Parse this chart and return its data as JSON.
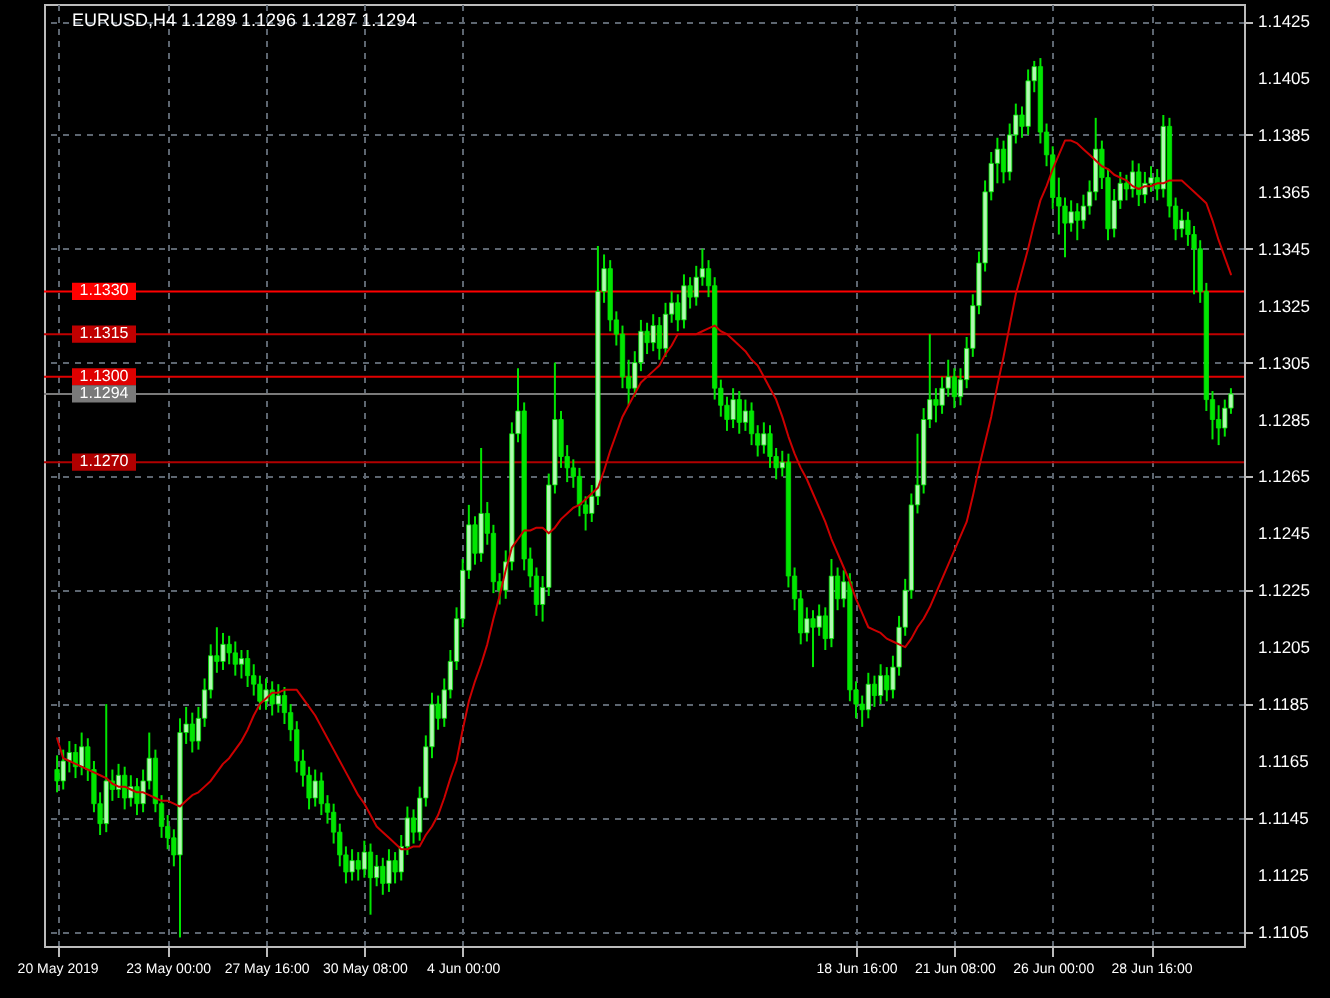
{
  "chart_data": {
    "type": "candlestick",
    "title": "EURUSD,H4  1.1289 1.1296 1.1287 1.1294",
    "color": "#00e600",
    "categories": [
      "20 May 2019",
      null,
      null,
      null,
      null,
      null,
      null,
      null,
      null,
      null,
      null,
      null,
      null,
      null,
      null,
      null,
      null,
      null,
      "23 May 00:00",
      null,
      null,
      null,
      null,
      null,
      null,
      null,
      null,
      null,
      null,
      null,
      null,
      null,
      null,
      null,
      "27 May 16:00",
      null,
      null,
      null,
      null,
      null,
      null,
      null,
      null,
      null,
      null,
      null,
      null,
      null,
      null,
      null,
      "30 May 08:00",
      null,
      null,
      null,
      null,
      null,
      null,
      null,
      null,
      null,
      null,
      null,
      null,
      null,
      null,
      null,
      "4 Jun 00:00",
      null,
      null,
      null,
      null,
      null,
      null,
      null,
      null,
      null,
      null,
      null,
      null,
      null,
      null,
      null,
      null,
      null,
      null,
      null,
      null,
      null,
      null,
      null,
      null,
      null,
      null,
      null,
      null,
      null,
      null,
      null,
      null,
      null,
      null,
      null,
      null,
      null,
      null,
      null,
      null,
      null,
      null,
      null,
      null,
      null,
      null,
      null,
      null,
      null,
      null,
      null,
      null,
      null,
      null,
      null,
      null,
      null,
      null,
      null,
      null,
      null,
      null,
      null,
      "18 Jun 16:00",
      null,
      null,
      null,
      null,
      null,
      null,
      null,
      null,
      null,
      null,
      null,
      null,
      null,
      null,
      null,
      "21 Jun 08:00",
      null,
      null,
      null,
      null,
      null,
      null,
      null,
      null,
      null,
      null,
      null,
      null,
      null,
      null,
      null,
      "26 Jun 00:00",
      null,
      null,
      null,
      null,
      null,
      null,
      null,
      null,
      null,
      null,
      null,
      null,
      null,
      null,
      null,
      "28 Jun 16:00",
      null,
      null,
      null,
      null,
      null,
      null,
      null,
      null,
      null,
      null,
      null,
      null,
      null
    ],
    "ohlc": [
      [
        1.1162,
        1.1167,
        1.1154,
        1.1158
      ],
      [
        1.1158,
        1.1169,
        1.1155,
        1.1165
      ],
      [
        1.1165,
        1.1172,
        1.1161,
        1.1168
      ],
      [
        1.1168,
        1.1171,
        1.1159,
        1.1163
      ],
      [
        1.1163,
        1.1175,
        1.116,
        1.117
      ],
      [
        1.117,
        1.1173,
        1.1158,
        1.1162
      ],
      [
        1.1162,
        1.1165,
        1.1147,
        1.115
      ],
      [
        1.115,
        1.1154,
        1.1139,
        1.1143
      ],
      [
        1.1143,
        1.1185,
        1.114,
        1.1158
      ],
      [
        1.1158,
        1.1162,
        1.1151,
        1.1155
      ],
      [
        1.1155,
        1.1164,
        1.1152,
        1.116
      ],
      [
        1.116,
        1.1163,
        1.1148,
        1.1152
      ],
      [
        1.1152,
        1.116,
        1.1149,
        1.1156
      ],
      [
        1.1156,
        1.1159,
        1.1146,
        1.115
      ],
      [
        1.115,
        1.1162,
        1.1147,
        1.1158
      ],
      [
        1.1158,
        1.1175,
        1.1155,
        1.1166
      ],
      [
        1.1166,
        1.1169,
        1.1147,
        1.115
      ],
      [
        1.115,
        1.1153,
        1.1138,
        1.1142
      ],
      [
        1.1142,
        1.1146,
        1.1134,
        1.1138
      ],
      [
        1.1138,
        1.1141,
        1.1128,
        1.1132
      ],
      [
        1.1132,
        1.118,
        1.1103,
        1.1175
      ],
      [
        1.1175,
        1.1184,
        1.1171,
        1.1178
      ],
      [
        1.1178,
        1.1182,
        1.1168,
        1.1172
      ],
      [
        1.1172,
        1.1184,
        1.1169,
        1.118
      ],
      [
        1.118,
        1.1194,
        1.1177,
        1.119
      ],
      [
        1.119,
        1.1206,
        1.1187,
        1.1202
      ],
      [
        1.1202,
        1.1212,
        1.1196,
        1.12
      ],
      [
        1.12,
        1.121,
        1.1197,
        1.1206
      ],
      [
        1.1206,
        1.1209,
        1.1199,
        1.1203
      ],
      [
        1.1203,
        1.1207,
        1.1195,
        1.1199
      ],
      [
        1.1199,
        1.1204,
        1.1194,
        1.1201
      ],
      [
        1.1201,
        1.1204,
        1.1191,
        1.1195
      ],
      [
        1.1195,
        1.1199,
        1.1188,
        1.1192
      ],
      [
        1.1192,
        1.1195,
        1.1183,
        1.1186
      ],
      [
        1.1186,
        1.1194,
        1.1183,
        1.119
      ],
      [
        1.119,
        1.1193,
        1.1181,
        1.1185
      ],
      [
        1.1185,
        1.1192,
        1.1182,
        1.1188
      ],
      [
        1.1188,
        1.1191,
        1.1178,
        1.1182
      ],
      [
        1.1182,
        1.1185,
        1.1172,
        1.1176
      ],
      [
        1.1176,
        1.1179,
        1.1161,
        1.1165
      ],
      [
        1.1165,
        1.1169,
        1.1156,
        1.116
      ],
      [
        1.116,
        1.1163,
        1.1148,
        1.1152
      ],
      [
        1.1152,
        1.1162,
        1.1149,
        1.1158
      ],
      [
        1.1158,
        1.1161,
        1.1146,
        1.115
      ],
      [
        1.115,
        1.1153,
        1.1143,
        1.1147
      ],
      [
        1.1147,
        1.115,
        1.1136,
        1.114
      ],
      [
        1.114,
        1.1143,
        1.1128,
        1.1132
      ],
      [
        1.1132,
        1.1135,
        1.1122,
        1.1126
      ],
      [
        1.1126,
        1.1134,
        1.1123,
        1.113
      ],
      [
        1.113,
        1.1133,
        1.1123,
        1.1127
      ],
      [
        1.1127,
        1.1137,
        1.1124,
        1.1133
      ],
      [
        1.1133,
        1.1136,
        1.1111,
        1.1124
      ],
      [
        1.1124,
        1.1132,
        1.1121,
        1.1128
      ],
      [
        1.1128,
        1.1131,
        1.1118,
        1.1122
      ],
      [
        1.1122,
        1.1134,
        1.1119,
        1.113
      ],
      [
        1.113,
        1.1133,
        1.1122,
        1.1126
      ],
      [
        1.1126,
        1.1139,
        1.1123,
        1.1135
      ],
      [
        1.1135,
        1.1149,
        1.1132,
        1.1145
      ],
      [
        1.1145,
        1.1148,
        1.1136,
        1.114
      ],
      [
        1.114,
        1.1156,
        1.1137,
        1.1152
      ],
      [
        1.1152,
        1.1174,
        1.1149,
        1.117
      ],
      [
        1.117,
        1.1189,
        1.1166,
        1.1185
      ],
      [
        1.1185,
        1.1188,
        1.1176,
        1.118
      ],
      [
        1.118,
        1.1194,
        1.1177,
        1.119
      ],
      [
        1.119,
        1.1204,
        1.1187,
        1.12
      ],
      [
        1.12,
        1.1219,
        1.1197,
        1.1215
      ],
      [
        1.1215,
        1.1236,
        1.1212,
        1.1232
      ],
      [
        1.1232,
        1.1255,
        1.1229,
        1.1248
      ],
      [
        1.1248,
        1.1251,
        1.1234,
        1.1238
      ],
      [
        1.1238,
        1.1275,
        1.1235,
        1.1252
      ],
      [
        1.1252,
        1.1256,
        1.1241,
        1.1245
      ],
      [
        1.1245,
        1.1248,
        1.1224,
        1.1228
      ],
      [
        1.1228,
        1.1231,
        1.122,
        1.1225
      ],
      [
        1.1225,
        1.1239,
        1.1222,
        1.1235
      ],
      [
        1.1235,
        1.1284,
        1.1232,
        1.128
      ],
      [
        1.128,
        1.1303,
        1.1277,
        1.1288
      ],
      [
        1.1288,
        1.1291,
        1.1232,
        1.1236
      ],
      [
        1.1236,
        1.124,
        1.1226,
        1.123
      ],
      [
        1.123,
        1.1233,
        1.1216,
        1.122
      ],
      [
        1.122,
        1.123,
        1.1214,
        1.1226
      ],
      [
        1.1226,
        1.1266,
        1.1223,
        1.1262
      ],
      [
        1.1262,
        1.1305,
        1.1259,
        1.1285
      ],
      [
        1.1285,
        1.1288,
        1.1268,
        1.1272
      ],
      [
        1.1272,
        1.1276,
        1.1263,
        1.1268
      ],
      [
        1.1268,
        1.1271,
        1.1261,
        1.1265
      ],
      [
        1.1265,
        1.1268,
        1.1251,
        1.1255
      ],
      [
        1.1255,
        1.1258,
        1.1246,
        1.1252
      ],
      [
        1.1252,
        1.1262,
        1.1249,
        1.1258
      ],
      [
        1.1258,
        1.1346,
        1.1255,
        1.133
      ],
      [
        1.133,
        1.1343,
        1.1326,
        1.1338
      ],
      [
        1.1338,
        1.1341,
        1.1316,
        1.132
      ],
      [
        1.132,
        1.1323,
        1.1311,
        1.1315
      ],
      [
        1.1315,
        1.1318,
        1.1296,
        1.13
      ],
      [
        1.13,
        1.1306,
        1.129,
        1.1296
      ],
      [
        1.1296,
        1.1309,
        1.1293,
        1.1305
      ],
      [
        1.1305,
        1.132,
        1.1302,
        1.1316
      ],
      [
        1.1316,
        1.1319,
        1.1308,
        1.1312
      ],
      [
        1.1312,
        1.1322,
        1.1309,
        1.1318
      ],
      [
        1.1318,
        1.1321,
        1.1306,
        1.131
      ],
      [
        1.131,
        1.1326,
        1.1307,
        1.1322
      ],
      [
        1.1322,
        1.133,
        1.1319,
        1.1326
      ],
      [
        1.1326,
        1.1329,
        1.1316,
        1.132
      ],
      [
        1.132,
        1.1336,
        1.1317,
        1.1332
      ],
      [
        1.1332,
        1.1335,
        1.1324,
        1.1328
      ],
      [
        1.1328,
        1.1339,
        1.1325,
        1.1335
      ],
      [
        1.1335,
        1.1345,
        1.1332,
        1.1338
      ],
      [
        1.1338,
        1.1341,
        1.1328,
        1.1332
      ],
      [
        1.1332,
        1.1335,
        1.1292,
        1.1296
      ],
      [
        1.1296,
        1.1299,
        1.1286,
        1.129
      ],
      [
        1.129,
        1.1293,
        1.1281,
        1.1285
      ],
      [
        1.1285,
        1.1296,
        1.1282,
        1.1292
      ],
      [
        1.1292,
        1.1295,
        1.128,
        1.1284
      ],
      [
        1.1284,
        1.1292,
        1.1281,
        1.1288
      ],
      [
        1.1288,
        1.1291,
        1.1276,
        1.128
      ],
      [
        1.128,
        1.1283,
        1.1272,
        1.1276
      ],
      [
        1.1276,
        1.1284,
        1.1273,
        1.128
      ],
      [
        1.128,
        1.1283,
        1.1268,
        1.1272
      ],
      [
        1.1272,
        1.1275,
        1.1264,
        1.1268
      ],
      [
        1.1268,
        1.1274,
        1.1265,
        1.127
      ],
      [
        1.127,
        1.1273,
        1.1226,
        1.123
      ],
      [
        1.123,
        1.1233,
        1.1218,
        1.1222
      ],
      [
        1.1222,
        1.1225,
        1.1206,
        1.121
      ],
      [
        1.121,
        1.1219,
        1.1207,
        1.1215
      ],
      [
        1.1215,
        1.1218,
        1.1198,
        1.1212
      ],
      [
        1.1212,
        1.122,
        1.1209,
        1.1216
      ],
      [
        1.1216,
        1.1219,
        1.1204,
        1.1208
      ],
      [
        1.1208,
        1.1236,
        1.1205,
        1.123
      ],
      [
        1.123,
        1.1233,
        1.1218,
        1.1222
      ],
      [
        1.1222,
        1.1232,
        1.1219,
        1.1228
      ],
      [
        1.1228,
        1.1231,
        1.1186,
        1.119
      ],
      [
        1.119,
        1.1193,
        1.118,
        1.1185
      ],
      [
        1.1185,
        1.1188,
        1.1177,
        1.1183
      ],
      [
        1.1183,
        1.1196,
        1.118,
        1.1192
      ],
      [
        1.1192,
        1.1195,
        1.1184,
        1.1188
      ],
      [
        1.1188,
        1.1199,
        1.1185,
        1.1195
      ],
      [
        1.1195,
        1.1198,
        1.1186,
        1.119
      ],
      [
        1.119,
        1.1202,
        1.1187,
        1.1198
      ],
      [
        1.1198,
        1.1216,
        1.1195,
        1.1212
      ],
      [
        1.1212,
        1.1229,
        1.1209,
        1.1225
      ],
      [
        1.1225,
        1.1259,
        1.1222,
        1.1255
      ],
      [
        1.1255,
        1.128,
        1.1252,
        1.1262
      ],
      [
        1.1262,
        1.1289,
        1.1259,
        1.1285
      ],
      [
        1.1285,
        1.1315,
        1.1282,
        1.1292
      ],
      [
        1.1292,
        1.1296,
        1.1284,
        1.129
      ],
      [
        1.129,
        1.13,
        1.1287,
        1.1296
      ],
      [
        1.1296,
        1.1306,
        1.1293,
        1.13
      ],
      [
        1.13,
        1.1303,
        1.1289,
        1.1293
      ],
      [
        1.1293,
        1.1303,
        1.129,
        1.1299
      ],
      [
        1.1299,
        1.1314,
        1.1296,
        1.131
      ],
      [
        1.131,
        1.1329,
        1.1307,
        1.1325
      ],
      [
        1.1325,
        1.1344,
        1.1322,
        1.134
      ],
      [
        1.134,
        1.1369,
        1.1337,
        1.1365
      ],
      [
        1.1365,
        1.1379,
        1.1362,
        1.1375
      ],
      [
        1.1375,
        1.1384,
        1.1368,
        1.138
      ],
      [
        1.138,
        1.1383,
        1.1368,
        1.1372
      ],
      [
        1.1372,
        1.1389,
        1.1369,
        1.1385
      ],
      [
        1.1385,
        1.1396,
        1.1382,
        1.1392
      ],
      [
        1.1392,
        1.1395,
        1.1384,
        1.1388
      ],
      [
        1.1388,
        1.1408,
        1.1385,
        1.1404
      ],
      [
        1.1404,
        1.1411,
        1.14,
        1.1409
      ],
      [
        1.1409,
        1.1412,
        1.1382,
        1.1386
      ],
      [
        1.1386,
        1.1389,
        1.1374,
        1.1378
      ],
      [
        1.1378,
        1.1381,
        1.1359,
        1.1363
      ],
      [
        1.1363,
        1.137,
        1.135,
        1.136
      ],
      [
        1.136,
        1.1363,
        1.1342,
        1.1354
      ],
      [
        1.1354,
        1.1362,
        1.1351,
        1.1358
      ],
      [
        1.1358,
        1.1361,
        1.1348,
        1.1355
      ],
      [
        1.1355,
        1.1364,
        1.1352,
        1.136
      ],
      [
        1.136,
        1.1369,
        1.1357,
        1.1365
      ],
      [
        1.1365,
        1.1391,
        1.1362,
        1.138
      ],
      [
        1.138,
        1.1383,
        1.1366,
        1.137
      ],
      [
        1.137,
        1.1373,
        1.1348,
        1.1352
      ],
      [
        1.1352,
        1.1366,
        1.1349,
        1.1362
      ],
      [
        1.1362,
        1.1372,
        1.1359,
        1.1368
      ],
      [
        1.1368,
        1.1371,
        1.1362,
        1.1366
      ],
      [
        1.1366,
        1.1376,
        1.1363,
        1.1372
      ],
      [
        1.1372,
        1.1375,
        1.136,
        1.1364
      ],
      [
        1.1364,
        1.1372,
        1.1361,
        1.1368
      ],
      [
        1.1368,
        1.1374,
        1.1365,
        1.137
      ],
      [
        1.137,
        1.1373,
        1.1362,
        1.1366
      ],
      [
        1.1366,
        1.1392,
        1.1363,
        1.1388
      ],
      [
        1.1388,
        1.1391,
        1.1356,
        1.136
      ],
      [
        1.136,
        1.1363,
        1.1348,
        1.1352
      ],
      [
        1.1352,
        1.1359,
        1.1349,
        1.1355
      ],
      [
        1.1355,
        1.1358,
        1.1346,
        1.135
      ],
      [
        1.135,
        1.1353,
        1.1329,
        1.1345
      ],
      [
        1.1345,
        1.1348,
        1.1326,
        1.133
      ],
      [
        1.133,
        1.1333,
        1.1288,
        1.1292
      ],
      [
        1.1292,
        1.1295,
        1.1278,
        1.1285
      ],
      [
        1.1285,
        1.129,
        1.1276,
        1.1282
      ],
      [
        1.1282,
        1.1292,
        1.1279,
        1.1289
      ],
      [
        1.1289,
        1.1296,
        1.1287,
        1.1294
      ]
    ],
    "series": [
      {
        "type": "line",
        "color": "#cc0000",
        "values": [
          1.1173,
          1.1166,
          1.1165,
          1.1164,
          1.1163,
          1.1162,
          1.1161,
          1.116,
          1.1159,
          1.1157,
          1.1156,
          1.1156,
          1.1155,
          1.1154,
          1.1154,
          1.1153,
          1.1152,
          1.1151,
          1.1151,
          1.115,
          1.1149,
          1.1151,
          1.1153,
          1.1154,
          1.1156,
          1.1158,
          1.1161,
          1.1164,
          1.1166,
          1.1169,
          1.1172,
          1.1176,
          1.1181,
          1.1185,
          1.1187,
          1.1189,
          1.1189,
          1.119,
          1.119,
          1.119,
          1.1187,
          1.1184,
          1.1181,
          1.1177,
          1.1173,
          1.1169,
          1.1165,
          1.1161,
          1.1157,
          1.1153,
          1.115,
          1.1146,
          1.1142,
          1.114,
          1.1138,
          1.1136,
          1.1134,
          1.1134,
          1.1135,
          1.1135,
          1.1139,
          1.1142,
          1.1146,
          1.1152,
          1.1159,
          1.1165,
          1.1176,
          1.1186,
          1.1193,
          1.1199,
          1.1206,
          1.1215,
          1.1223,
          1.1232,
          1.124,
          1.1243,
          1.1246,
          1.1246,
          1.1247,
          1.1247,
          1.1245,
          1.1247,
          1.125,
          1.1252,
          1.1254,
          1.1255,
          1.1257,
          1.1259,
          1.1261,
          1.1267,
          1.1274,
          1.128,
          1.1286,
          1.129,
          1.1294,
          1.1298,
          1.13,
          1.1302,
          1.1304,
          1.1308,
          1.1311,
          1.1315,
          1.1315,
          1.1315,
          1.1315,
          1.1316,
          1.1317,
          1.1318,
          1.1316,
          1.1315,
          1.1313,
          1.1311,
          1.1309,
          1.1306,
          1.1304,
          1.13,
          1.1296,
          1.1292,
          1.1286,
          1.1279,
          1.1273,
          1.1268,
          1.1264,
          1.1259,
          1.1254,
          1.1249,
          1.1243,
          1.1238,
          1.1233,
          1.1228,
          1.1222,
          1.1217,
          1.1212,
          1.1211,
          1.121,
          1.1208,
          1.1207,
          1.1206,
          1.1205,
          1.1208,
          1.1212,
          1.1215,
          1.1219,
          1.1224,
          1.1229,
          1.1234,
          1.1239,
          1.1244,
          1.1249,
          1.1258,
          1.1268,
          1.1277,
          1.1286,
          1.1297,
          1.1307,
          1.1318,
          1.1329,
          1.1337,
          1.1345,
          1.1354,
          1.1362,
          1.1367,
          1.1373,
          1.1378,
          1.1383,
          1.1383,
          1.1382,
          1.138,
          1.1378,
          1.1376,
          1.1374,
          1.1373,
          1.1371,
          1.137,
          1.1369,
          1.1367,
          1.1366,
          1.1367,
          1.1367,
          1.1368,
          1.1368,
          1.1369,
          1.1369,
          1.1369,
          1.1367,
          1.1365,
          1.1363,
          1.1361,
          1.1355,
          1.1348,
          1.1342,
          1.1336
        ]
      }
    ],
    "ylim": [
      1.11,
      1.1431
    ],
    "yticks": [
      1.1105,
      1.1125,
      1.1145,
      1.1165,
      1.1185,
      1.1205,
      1.1225,
      1.1245,
      1.1265,
      1.1285,
      1.1305,
      1.1325,
      1.1345,
      1.1365,
      1.1385,
      1.1405,
      1.1425
    ],
    "grid": true,
    "ref_lines": [
      {
        "axis": "y",
        "value": 1.133,
        "label": "1.1330",
        "color": "#ff0000"
      },
      {
        "axis": "y",
        "value": 1.1315,
        "label": "1.1315",
        "color": "#c00000"
      },
      {
        "axis": "y",
        "value": 1.13,
        "label": "1.1300",
        "color": "#e00000"
      },
      {
        "axis": "y",
        "value": 1.127,
        "label": "1.1270",
        "color": "#b00000"
      },
      {
        "axis": "y",
        "value": 1.1294,
        "label": "1.1294",
        "color": "#7a7a7a"
      }
    ]
  }
}
